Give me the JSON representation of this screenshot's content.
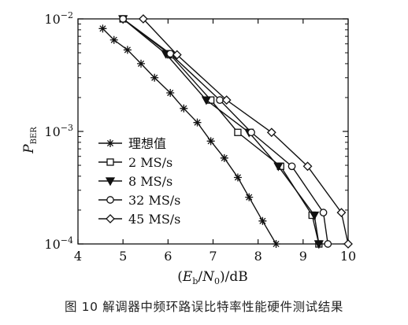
{
  "caption": "图 10  解调器中频环路误比特率性能硬件测试结果",
  "chart_data": {
    "type": "line",
    "title": "",
    "xlabel": "(E_b/N_0)/dB",
    "ylabel": "P_BER",
    "xlim": [
      4,
      10
    ],
    "ylim": [
      0.0001,
      0.01
    ],
    "yscale": "log",
    "grid": false,
    "legend_position": "bottom-left inside",
    "x_ticks": [
      "4",
      "5",
      "6",
      "7",
      "8",
      "9",
      "10"
    ],
    "y_ticks": [
      {
        "value": 0.01,
        "base": "10",
        "exp": "−2"
      },
      {
        "value": 0.001,
        "base": "10",
        "exp": "−3"
      },
      {
        "value": 0.0001,
        "base": "10",
        "exp": "−4"
      }
    ],
    "series": [
      {
        "name": "理想值",
        "marker": "star",
        "x": [
          4.55,
          4.8,
          5.1,
          5.4,
          5.7,
          6.05,
          6.35,
          6.65,
          6.95,
          7.25,
          7.55,
          7.8,
          8.1,
          8.4
        ],
        "y": [
          0.0082,
          0.0065,
          0.0053,
          0.004,
          0.003,
          0.0022,
          0.0016,
          0.0012,
          0.00082,
          0.00058,
          0.00039,
          0.00026,
          0.00016,
          0.0001
        ]
      },
      {
        "name": "2 MS/s",
        "marker": "square",
        "x": [
          5.0,
          6.05,
          6.95,
          7.55,
          8.5,
          9.2,
          9.35
        ],
        "y": [
          0.01,
          0.0048,
          0.0019,
          0.00098,
          0.00049,
          0.00018,
          0.0001
        ]
      },
      {
        "name": "8 MS/s",
        "marker": "triangle-down",
        "x": [
          5.0,
          5.95,
          6.85,
          7.8,
          8.45,
          9.25,
          9.35
        ],
        "y": [
          0.01,
          0.0049,
          0.0019,
          0.00098,
          0.00049,
          0.00018,
          0.0001
        ]
      },
      {
        "name": "32 MS/s",
        "marker": "circle",
        "x": [
          5.0,
          6.05,
          7.15,
          7.85,
          8.75,
          9.45,
          9.55
        ],
        "y": [
          0.01,
          0.0049,
          0.0019,
          0.00098,
          0.00049,
          0.00019,
          0.0001
        ]
      },
      {
        "name": "45 MS/s",
        "marker": "diamond",
        "x": [
          5.45,
          6.2,
          7.3,
          8.3,
          9.1,
          9.85,
          10.0
        ],
        "y": [
          0.01,
          0.0048,
          0.0019,
          0.00098,
          0.00049,
          0.00019,
          0.0001
        ]
      }
    ]
  }
}
